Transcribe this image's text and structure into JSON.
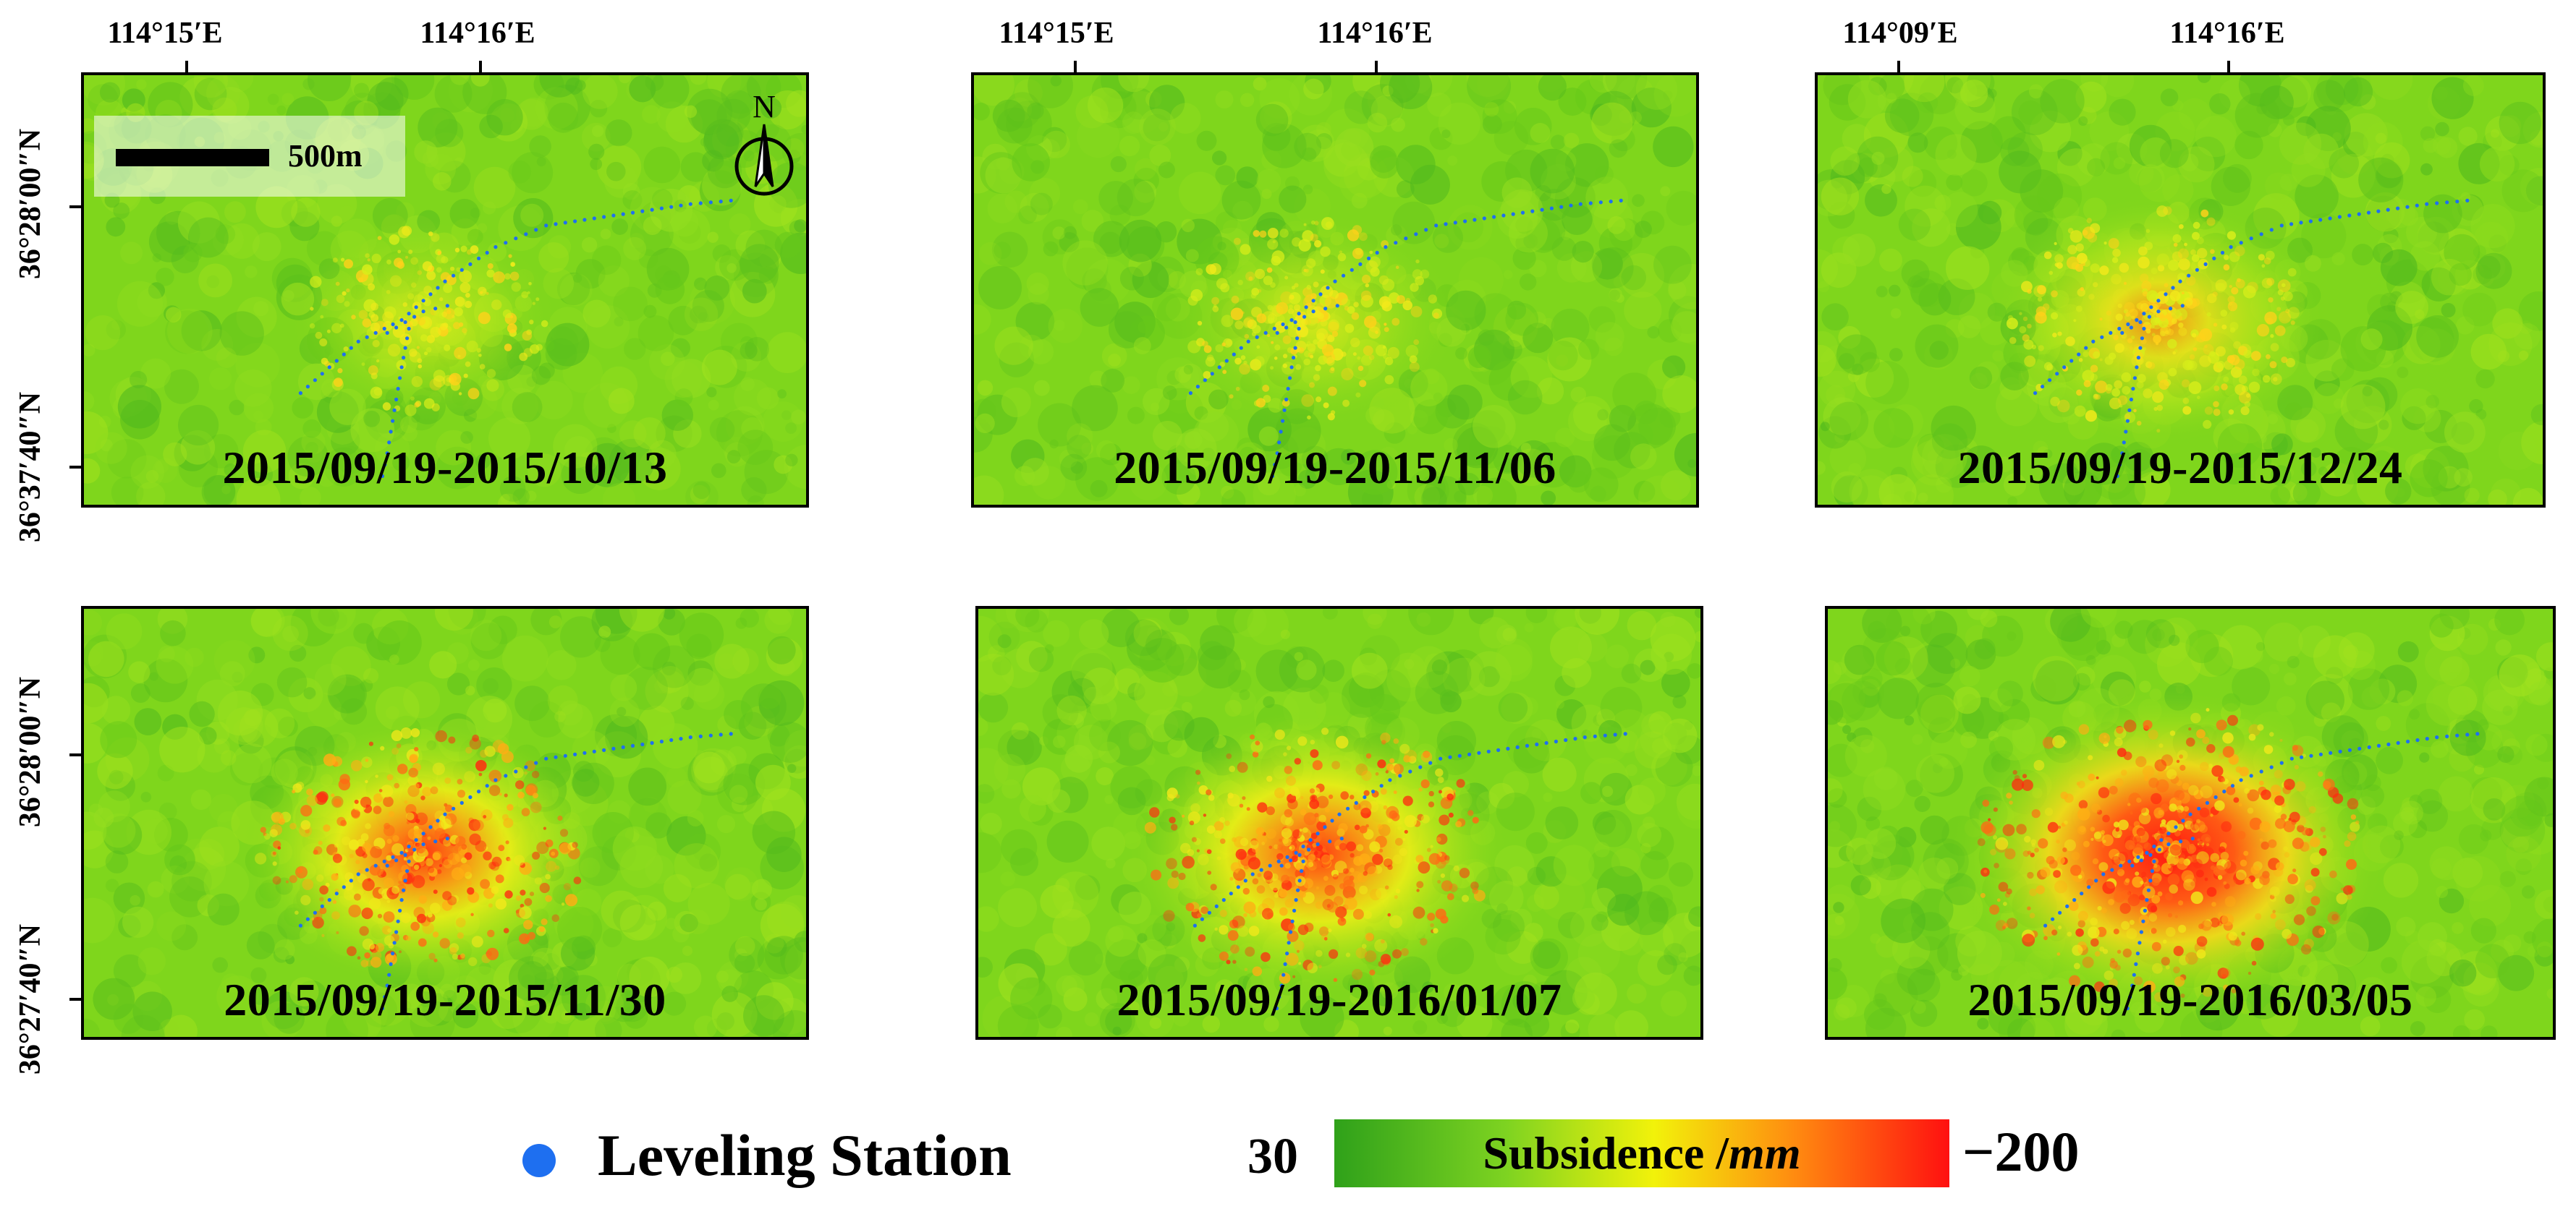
{
  "map_grid": {
    "colorbar": {
      "title": "Subsidence /",
      "unit": "mm",
      "min_label": "30",
      "max_label": "−200",
      "min_value": 30,
      "max_value": -200,
      "colors": [
        "#2fa11a",
        "#7ed321",
        "#f2f20a",
        "#ff8a10",
        "#ff1010"
      ]
    },
    "legend": {
      "marker_label": "Leveling Station",
      "marker_color": "#1e6ff0"
    },
    "scale_bar": {
      "label": "500m"
    },
    "north_arrow": {
      "label": "N"
    },
    "panels": [
      {
        "date_range": "2015/09/19-2015/10/13",
        "x_ticks": [
          "114°15′E",
          "114°16′E"
        ],
        "y_ticks": [
          "36°28′00″N",
          "36°37′40″N"
        ],
        "subsidence_level": 0.2
      },
      {
        "date_range": "2015/09/19-2015/11/06",
        "x_ticks": [
          "114°15′E",
          "114°16′E"
        ],
        "y_ticks": [],
        "subsidence_level": 0.3
      },
      {
        "date_range": "2015/09/19-2015/12/24",
        "x_ticks": [
          "114°09′E",
          "114°16′E"
        ],
        "y_ticks": [],
        "subsidence_level": 0.5
      },
      {
        "date_range": "2015/09/19-2015/11/30",
        "x_ticks": [],
        "y_ticks": [
          "36°28′00″N",
          "36°27′40″N"
        ],
        "subsidence_level": 0.65
      },
      {
        "date_range": "2015/09/19-2016/01/07",
        "x_ticks": [],
        "y_ticks": [],
        "subsidence_level": 0.75
      },
      {
        "date_range": "2015/09/19-2016/03/05",
        "x_ticks": [],
        "y_ticks": [],
        "subsidence_level": 1.0
      }
    ]
  }
}
